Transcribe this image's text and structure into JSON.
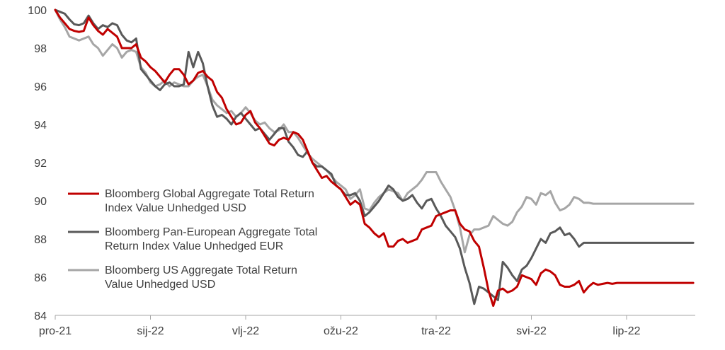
{
  "chart_data": {
    "type": "line",
    "title": "",
    "xlabel": "",
    "ylabel": "",
    "ylim": [
      84,
      100
    ],
    "yticks": [
      "84",
      "86",
      "88",
      "90",
      "92",
      "94",
      "96",
      "98",
      "100"
    ],
    "xticks": [
      {
        "label": "pro-21",
        "x": 0
      },
      {
        "label": "sij-22",
        "x": 1
      },
      {
        "label": "vlj-22",
        "x": 2
      },
      {
        "label": "ožu-22",
        "x": 3
      },
      {
        "label": "tra-22",
        "x": 4
      },
      {
        "label": "svi-22",
        "x": 5
      },
      {
        "label": "lip-22",
        "x": 6
      }
    ],
    "xlim": [
      0,
      6.7
    ],
    "grid": false,
    "legend_position": "left-middle",
    "series": [
      {
        "name": "Bloomberg Global Aggregate Total Return Index Value Unhedged USD",
        "name_lines": [
          "Bloomberg Global Aggregate Total Return",
          "Index Value Unhedged USD"
        ],
        "color": "#c00000",
        "x": [
          0,
          0.05,
          0.1,
          0.15,
          0.2,
          0.25,
          0.3,
          0.35,
          0.4,
          0.45,
          0.5,
          0.55,
          0.6,
          0.65,
          0.7,
          0.75,
          0.8,
          0.85,
          0.9,
          0.95,
          1.0,
          1.05,
          1.1,
          1.15,
          1.2,
          1.25,
          1.3,
          1.35,
          1.4,
          1.45,
          1.5,
          1.55,
          1.6,
          1.65,
          1.7,
          1.75,
          1.8,
          1.85,
          1.9,
          1.95,
          2.0,
          2.05,
          2.1,
          2.15,
          2.2,
          2.25,
          2.3,
          2.35,
          2.4,
          2.45,
          2.5,
          2.55,
          2.6,
          2.65,
          2.7,
          2.75,
          2.8,
          2.85,
          2.9,
          2.95,
          3.0,
          3.05,
          3.1,
          3.15,
          3.2,
          3.25,
          3.3,
          3.35,
          3.4,
          3.45,
          3.5,
          3.55,
          3.6,
          3.65,
          3.7,
          3.75,
          3.8,
          3.85,
          3.9,
          3.95,
          4.0,
          4.05,
          4.1,
          4.15,
          4.2,
          4.25,
          4.3,
          4.35,
          4.4,
          4.45,
          4.5,
          4.55,
          4.6,
          4.65,
          4.7,
          4.75,
          4.8,
          4.85,
          4.9,
          4.95,
          5.0,
          5.05,
          5.1,
          5.15,
          5.2,
          5.25,
          5.3,
          5.35,
          5.4,
          5.45,
          5.5,
          5.55,
          5.6,
          5.65,
          5.7,
          5.75,
          5.8,
          5.85,
          5.9,
          5.95,
          6.0,
          6.05,
          6.1,
          6.15,
          6.2,
          6.25,
          6.3,
          6.35,
          6.4,
          6.45,
          6.5,
          6.55,
          6.6,
          6.65,
          6.7
        ],
        "values": [
          100,
          99.6,
          99.3,
          99.0,
          98.9,
          98.85,
          98.9,
          99.6,
          99.2,
          98.9,
          98.7,
          99.0,
          98.8,
          98.6,
          98.0,
          98.0,
          98.0,
          98.2,
          97.5,
          97.3,
          97.0,
          96.8,
          96.5,
          96.2,
          96.6,
          96.9,
          96.9,
          96.6,
          96.1,
          96.3,
          96.7,
          96.8,
          96.5,
          96.3,
          95.7,
          95.4,
          94.8,
          94.4,
          94.0,
          94.1,
          94.5,
          94.7,
          94.1,
          93.8,
          93.4,
          93.0,
          92.9,
          93.2,
          93.3,
          93.2,
          93.6,
          93.5,
          93.2,
          92.6,
          92.0,
          91.6,
          91.2,
          91.3,
          91.0,
          90.8,
          90.6,
          90.2,
          89.8,
          90.0,
          89.8,
          88.8,
          88.6,
          88.3,
          88.1,
          88.3,
          87.6,
          87.6,
          87.9,
          88.0,
          87.8,
          87.9,
          88.0,
          88.5,
          88.6,
          88.7,
          89.2,
          89.3,
          89.4,
          89.5,
          89.5,
          88.8,
          88.5,
          88.4,
          87.9,
          87.6,
          86.5,
          85.3,
          84.5,
          85.3,
          85.4,
          85.2,
          85.3,
          85.5,
          86.1,
          86.0,
          85.9,
          85.6,
          86.2,
          86.4,
          86.3,
          86.1,
          85.6,
          85.5,
          85.5,
          85.6,
          85.8,
          85.2,
          85.5,
          85.7,
          85.6,
          85.65,
          85.7,
          85.65,
          85.7,
          85.7,
          85.7,
          85.7,
          85.7,
          85.7,
          85.7,
          85.7,
          85.7,
          85.7,
          85.7,
          85.7,
          85.7,
          85.7,
          85.7,
          85.7,
          85.7
        ]
      },
      {
        "name": "Bloomberg Pan-European Aggregate Total Return Index Value Unhedged EUR",
        "name_lines": [
          "Bloomberg Pan-European Aggregate Total",
          "Return Index Value Unhedged EUR"
        ],
        "color": "#595959",
        "x": [
          0,
          0.05,
          0.1,
          0.15,
          0.2,
          0.25,
          0.3,
          0.35,
          0.4,
          0.45,
          0.5,
          0.55,
          0.6,
          0.65,
          0.7,
          0.75,
          0.8,
          0.85,
          0.9,
          0.95,
          1.0,
          1.05,
          1.1,
          1.15,
          1.2,
          1.25,
          1.3,
          1.35,
          1.4,
          1.45,
          1.5,
          1.55,
          1.6,
          1.65,
          1.7,
          1.75,
          1.8,
          1.85,
          1.9,
          1.95,
          2.0,
          2.05,
          2.1,
          2.15,
          2.2,
          2.25,
          2.3,
          2.35,
          2.4,
          2.45,
          2.5,
          2.55,
          2.6,
          2.65,
          2.7,
          2.75,
          2.8,
          2.85,
          2.9,
          2.95,
          3.0,
          3.05,
          3.1,
          3.15,
          3.2,
          3.25,
          3.3,
          3.35,
          3.4,
          3.45,
          3.5,
          3.55,
          3.6,
          3.65,
          3.7,
          3.75,
          3.8,
          3.85,
          3.9,
          3.95,
          4.0,
          4.05,
          4.1,
          4.15,
          4.2,
          4.25,
          4.3,
          4.35,
          4.4,
          4.45,
          4.5,
          4.55,
          4.6,
          4.65,
          4.7,
          4.75,
          4.8,
          4.85,
          4.9,
          4.95,
          5.0,
          5.05,
          5.1,
          5.15,
          5.2,
          5.25,
          5.3,
          5.35,
          5.4,
          5.45,
          5.5,
          5.55,
          5.6,
          5.65,
          5.7,
          5.75,
          5.8,
          5.85,
          5.9,
          5.95,
          6.0,
          6.05,
          6.1,
          6.15,
          6.2,
          6.25,
          6.3,
          6.35,
          6.4,
          6.45,
          6.5,
          6.55,
          6.6,
          6.65,
          6.7
        ],
        "values": [
          100,
          99.9,
          99.8,
          99.5,
          99.25,
          99.2,
          99.3,
          99.7,
          99.3,
          99.0,
          99.2,
          99.1,
          99.3,
          99.2,
          98.7,
          98.4,
          98.3,
          98.5,
          96.9,
          96.6,
          96.3,
          96.0,
          95.8,
          96.1,
          96.2,
          96.0,
          96.0,
          96.1,
          97.8,
          97.0,
          97.8,
          97.2,
          96.0,
          95.0,
          94.4,
          94.5,
          94.3,
          94.0,
          94.4,
          94.6,
          94.3,
          94.0,
          93.7,
          93.8,
          93.5,
          93.2,
          93.5,
          93.8,
          93.8,
          93.1,
          92.8,
          92.4,
          92.3,
          92.6,
          92.0,
          91.8,
          91.8,
          91.6,
          91.4,
          90.8,
          90.6,
          90.3,
          90.3,
          90.4,
          90.0,
          89.2,
          89.4,
          89.7,
          90.0,
          90.4,
          90.8,
          90.6,
          90.2,
          90.0,
          90.1,
          90.3,
          89.9,
          89.6,
          90.0,
          90.1,
          89.6,
          89.2,
          88.7,
          88.4,
          88.1,
          87.5,
          86.5,
          85.7,
          84.6,
          85.5,
          85.4,
          85.2,
          85.0,
          84.8,
          86.8,
          86.5,
          86.1,
          85.8,
          86.4,
          86.6,
          87.0,
          87.5,
          88.0,
          87.8,
          88.3,
          88.4,
          88.6,
          88.2,
          88.3,
          88.0,
          87.6,
          87.8,
          87.8,
          87.8,
          87.8,
          87.8,
          87.8,
          87.8,
          87.8,
          87.8,
          87.8,
          87.8,
          87.8,
          87.8,
          87.8,
          87.8,
          87.8,
          87.8,
          87.8,
          87.8,
          87.8,
          87.8,
          87.8,
          87.8,
          87.8
        ]
      },
      {
        "name": "Bloomberg US Aggregate Total Return Value Unhedged USD",
        "name_lines": [
          "Bloomberg US Aggregate Total Return",
          "Value Unhedged USD"
        ],
        "color": "#a6a6a6",
        "x": [
          0,
          0.05,
          0.1,
          0.15,
          0.2,
          0.25,
          0.3,
          0.35,
          0.4,
          0.45,
          0.5,
          0.55,
          0.6,
          0.65,
          0.7,
          0.75,
          0.8,
          0.85,
          0.9,
          0.95,
          1.0,
          1.05,
          1.1,
          1.15,
          1.2,
          1.25,
          1.3,
          1.35,
          1.4,
          1.45,
          1.5,
          1.55,
          1.6,
          1.65,
          1.7,
          1.75,
          1.8,
          1.85,
          1.9,
          1.95,
          2.0,
          2.05,
          2.1,
          2.15,
          2.2,
          2.25,
          2.3,
          2.35,
          2.4,
          2.45,
          2.5,
          2.55,
          2.6,
          2.65,
          2.7,
          2.75,
          2.8,
          2.85,
          2.9,
          2.95,
          3.0,
          3.05,
          3.1,
          3.15,
          3.2,
          3.25,
          3.3,
          3.35,
          3.4,
          3.45,
          3.5,
          3.55,
          3.6,
          3.65,
          3.7,
          3.75,
          3.8,
          3.85,
          3.9,
          3.95,
          4.0,
          4.05,
          4.1,
          4.15,
          4.2,
          4.25,
          4.3,
          4.35,
          4.4,
          4.45,
          4.5,
          4.55,
          4.6,
          4.65,
          4.7,
          4.75,
          4.8,
          4.85,
          4.9,
          4.95,
          5.0,
          5.05,
          5.1,
          5.15,
          5.2,
          5.25,
          5.3,
          5.35,
          5.4,
          5.45,
          5.5,
          5.55,
          5.6,
          5.65,
          5.7,
          5.75,
          5.8,
          5.85,
          5.9,
          5.95,
          6.0,
          6.05,
          6.1,
          6.15,
          6.2,
          6.25,
          6.3,
          6.35,
          6.4,
          6.45,
          6.5,
          6.55,
          6.6,
          6.65,
          6.7
        ],
        "values": [
          100,
          99.5,
          99.1,
          98.6,
          98.5,
          98.4,
          98.5,
          98.6,
          98.2,
          98.0,
          97.6,
          97.9,
          98.2,
          98.0,
          97.5,
          97.8,
          97.9,
          97.8,
          97.0,
          96.7,
          96.2,
          96.0,
          96.1,
          96.3,
          96.0,
          96.2,
          96.1,
          96.0,
          96.0,
          96.3,
          96.5,
          96.6,
          96.0,
          95.3,
          95.0,
          94.8,
          94.6,
          94.7,
          94.4,
          94.6,
          94.9,
          94.6,
          94.2,
          94.0,
          94.1,
          93.8,
          93.6,
          93.7,
          94.0,
          93.6,
          93.6,
          93.3,
          92.9,
          92.5,
          92.2,
          92.0,
          91.8,
          91.6,
          91.3,
          91.0,
          90.8,
          90.6,
          90.1,
          90.3,
          90.6,
          89.6,
          89.5,
          89.9,
          90.2,
          90.4,
          90.6,
          90.5,
          90.4,
          90.0,
          90.4,
          90.6,
          90.8,
          91.1,
          91.5,
          91.5,
          91.5,
          91.0,
          90.6,
          90.2,
          89.5,
          88.6,
          87.3,
          88.2,
          88.5,
          88.5,
          88.6,
          88.7,
          89.2,
          89.0,
          88.8,
          88.7,
          88.9,
          89.4,
          89.7,
          90.2,
          90.1,
          89.8,
          90.4,
          90.3,
          90.5,
          89.9,
          89.5,
          89.6,
          89.8,
          90.2,
          90.1,
          89.9,
          89.9,
          89.85,
          89.85,
          89.85,
          89.85,
          89.85,
          89.85,
          89.85,
          89.85,
          89.85,
          89.85,
          89.85,
          89.85,
          89.85,
          89.85,
          89.85,
          89.85,
          89.85,
          89.85,
          89.85,
          89.85,
          89.85,
          89.85
        ]
      }
    ]
  }
}
